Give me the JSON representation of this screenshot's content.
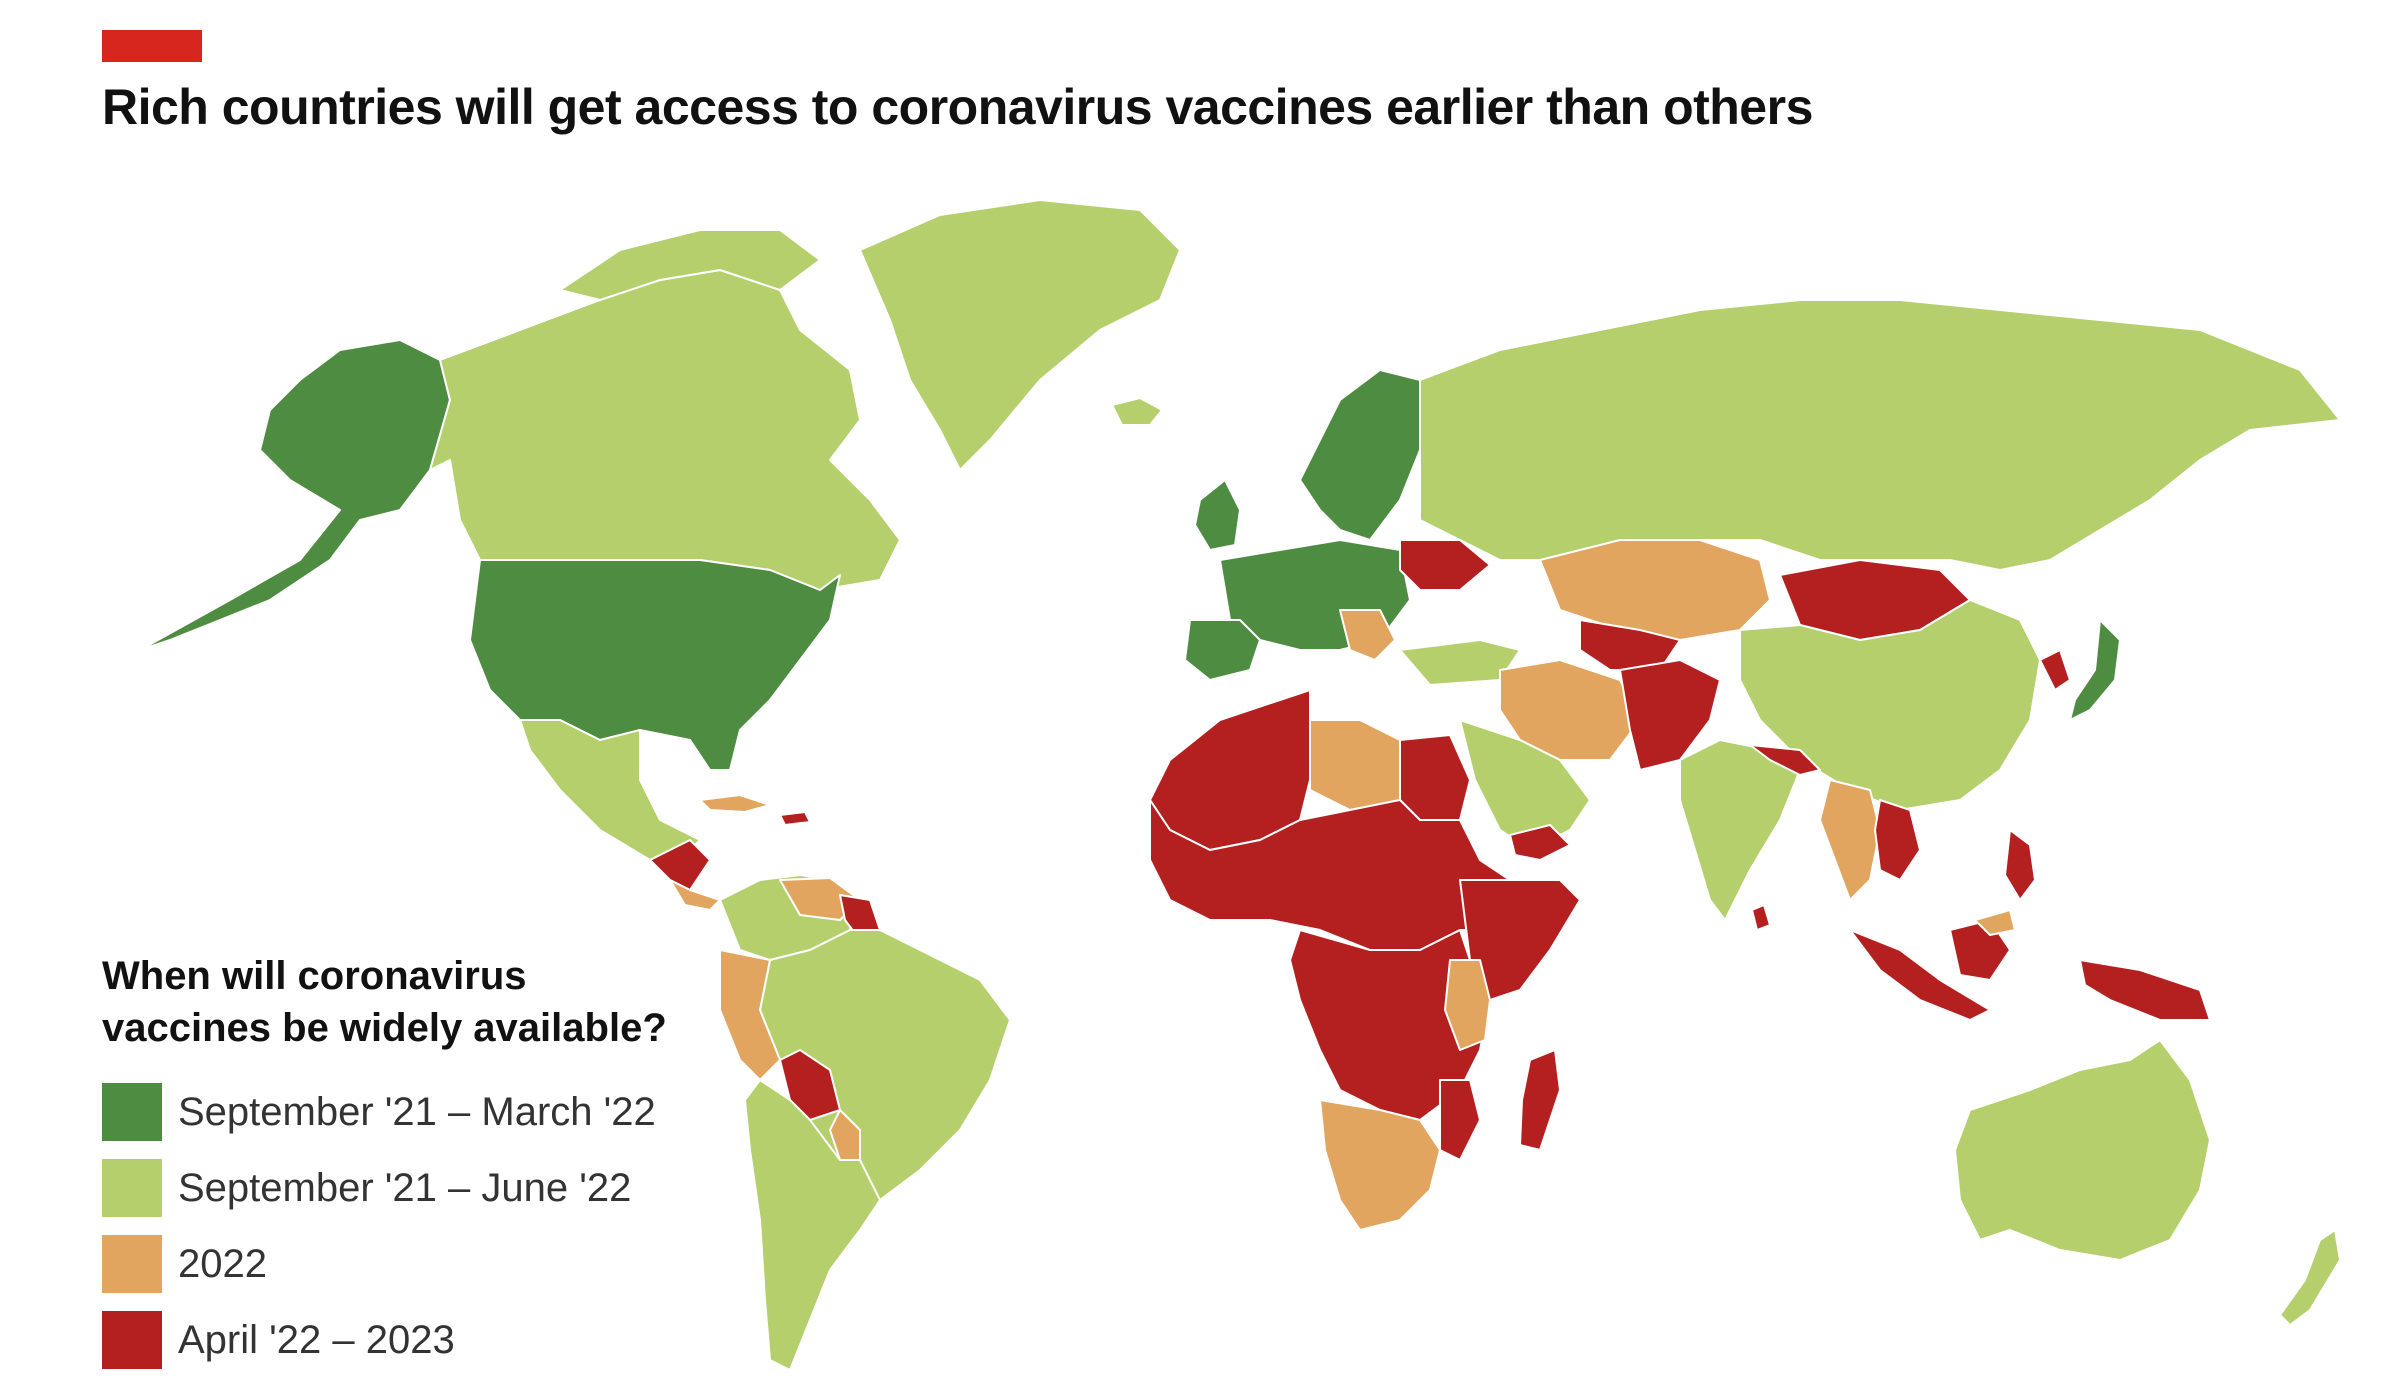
{
  "header": {
    "title": "Rich countries will get access to coronavirus vaccines earlier than others",
    "accent_color": "#d7261e"
  },
  "legend": {
    "title_line1": "When will coronavirus",
    "title_line2": "vaccines be widely available?",
    "items": [
      {
        "label": "September '21 – March '22",
        "color": "#4e8c41"
      },
      {
        "label": "September '21 – June '22",
        "color": "#b4cf6c"
      },
      {
        "label": "2022",
        "color": "#e2a560"
      },
      {
        "label": "April '22 – 2023",
        "color": "#b42020"
      }
    ]
  },
  "colors": {
    "early": "#4e8c41",
    "mid": "#b4cf6c",
    "y2022": "#e2a560",
    "late": "#b42020",
    "background": "#ffffff"
  }
}
